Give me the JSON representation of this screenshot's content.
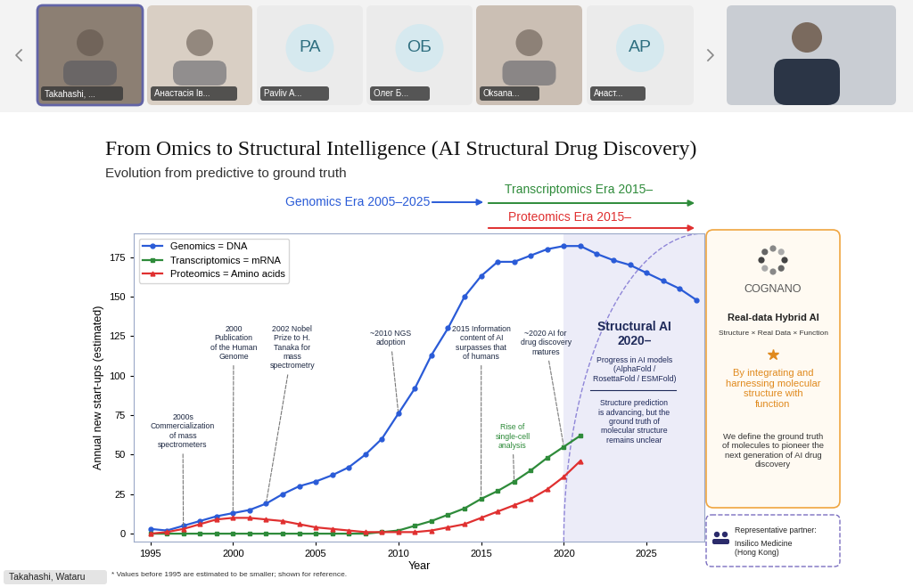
{
  "screen": {
    "participants": [
      {
        "name": "Takahashi, ...",
        "color": "#8c7f73"
      },
      {
        "name": "Анастасія Ів...",
        "color": "#d9cfc4"
      },
      {
        "name": "Pavliv A...",
        "initials": "PA"
      },
      {
        "name": "Олег Б...",
        "initials": "ОБ"
      },
      {
        "name": "Oksana...",
        "color": "#cbbfb4"
      },
      {
        "name": "Анаст...",
        "initials": "АР"
      }
    ],
    "speaker": "Takahashi, Wataru"
  },
  "chart_data": {
    "type": "line",
    "title": "From Omics to Structural Intelligence (AI Structural Drug Discovery)",
    "subtitle": "Evolution from predictive to ground truth",
    "eras": [
      {
        "label": "Genomics Era 2005–2025",
        "color": "#2a5bd7"
      },
      {
        "label": "Transcriptomics Era 2015–",
        "color": "#2e8b3a"
      },
      {
        "label": "Proteomics Era 2015–",
        "color": "#e03030"
      }
    ],
    "x_label": "Year",
    "y_label": "Annual new start-ups (estimated)",
    "x": [
      1995,
      1996,
      1997,
      1998,
      1999,
      2000,
      2001,
      2002,
      2003,
      2004,
      2005,
      2006,
      2007,
      2008,
      2009,
      2010,
      2011,
      2012,
      2013,
      2014,
      2015,
      2016,
      2017,
      2018,
      2019,
      2020,
      2021,
      2022,
      2023,
      2024,
      2025,
      2026,
      2027,
      2028
    ],
    "series": [
      {
        "name": "Genomics = DNA",
        "color": "#2a5bd7",
        "marker": "circle",
        "values": [
          3,
          2,
          5,
          8,
          11,
          13,
          15,
          19,
          25,
          30,
          33,
          37,
          42,
          50,
          60,
          76,
          92,
          113,
          130,
          150,
          163,
          172,
          172,
          176,
          180,
          182,
          182,
          177,
          173,
          170,
          165,
          160,
          155,
          148
        ]
      },
      {
        "name": "Transcriptomics = mRNA",
        "color": "#2e8b3a",
        "marker": "square",
        "values": [
          0,
          0,
          0,
          0,
          0,
          0,
          0,
          0,
          0,
          0,
          0,
          0,
          0,
          0,
          1,
          2,
          5,
          8,
          12,
          16,
          22,
          27,
          33,
          40,
          48,
          55,
          62,
          null,
          null,
          null,
          null,
          null,
          null,
          null
        ]
      },
      {
        "name": "Proteomics = Amino acids",
        "color": "#e03030",
        "marker": "triangle",
        "values": [
          0,
          1,
          3,
          6,
          9,
          10,
          10,
          9,
          8,
          6,
          4,
          3,
          2,
          1,
          1,
          1,
          1,
          2,
          4,
          6,
          10,
          14,
          18,
          22,
          28,
          36,
          46,
          null,
          null,
          null,
          null,
          null,
          null,
          null
        ]
      }
    ],
    "xlim": [
      1994,
      2028.5
    ],
    "xticks": [
      1995,
      2000,
      2005,
      2010,
      2015,
      2020,
      2025
    ],
    "ylim": [
      -5,
      190
    ],
    "yticks": [
      0,
      25,
      50,
      75,
      100,
      125,
      150,
      175
    ],
    "grid": false,
    "legend": "upper left",
    "annotations": [
      {
        "text": "2000s Commercialization of mass spectrometers",
        "x": 1997,
        "y": 3,
        "color": "#1f2a44"
      },
      {
        "text": "2000 Publication of the Human Genome",
        "x": 2000,
        "y": 13,
        "color": "#1f2a44"
      },
      {
        "text": "2002 Nobel Prize to H. Tanaka for mass spectrometry",
        "x": 2002,
        "y": 19,
        "color": "#1f2a44"
      },
      {
        "text": "~2010 NGS adoption",
        "x": 2010,
        "y": 76,
        "color": "#1f2a44"
      },
      {
        "text": "2015 Information content of AI surpasses that of humans",
        "x": 2015,
        "y": 22,
        "color": "#1f2a44"
      },
      {
        "text": "~2020 AI for drug discovery matures",
        "x": 2020,
        "y": 55,
        "color": "#1f2a44"
      },
      {
        "text": "Rise of single-cell analysis",
        "x": 2017,
        "y": 33,
        "color": "#2e8b3a"
      }
    ],
    "structural_ai": {
      "start": 2020,
      "title": "Structural AI 2020–",
      "models": "Progress in AI models (AlphaFold / RosettaFold / ESMFold)",
      "note": "Structure prediction is advancing, but the ground truth of molecular structure remains unclear"
    }
  },
  "panel": {
    "logo": "COGNANO",
    "heading": "Real-data Hybrid AI",
    "formula": "Structure × Real Data × Function",
    "claim": "By integrating and harnessing molecular structure with function",
    "mission": "We define the ground truth of molecules to pioneer the next generation of AI drug discovery",
    "partner_label": "Representative partner:",
    "partner": "Insilico Medicine (Hong Kong)"
  },
  "footnote": "* Values before 1995 are estimated to be smaller; shown for reference."
}
